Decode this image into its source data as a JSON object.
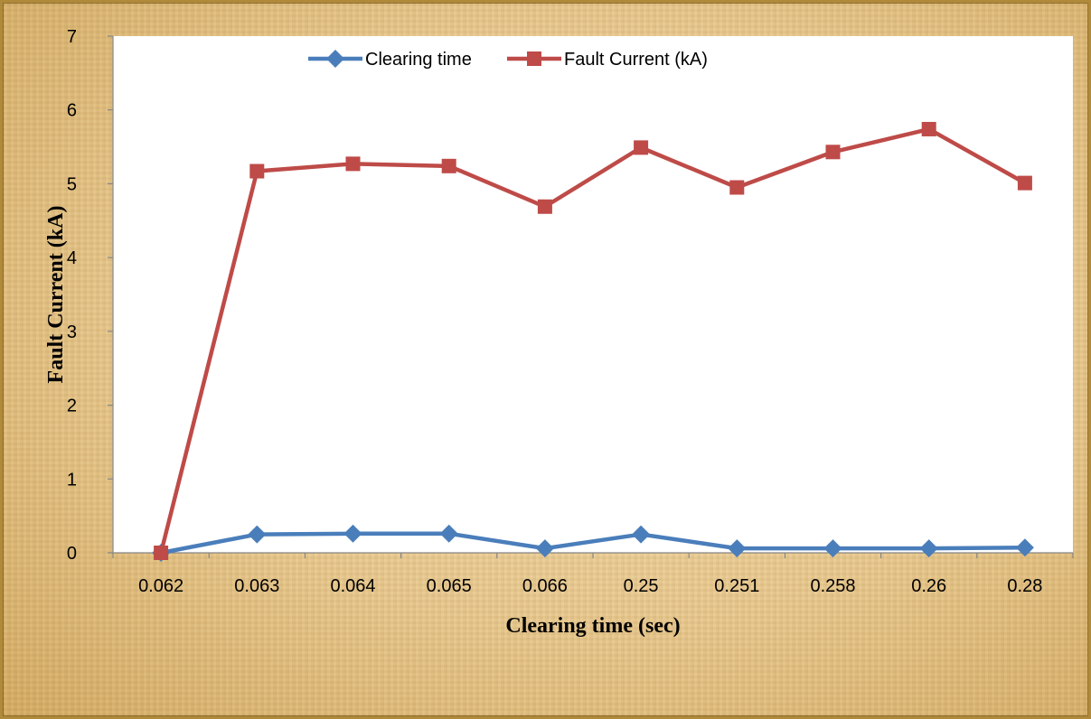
{
  "chart_data": {
    "type": "line",
    "categories": [
      "0.062",
      "0.063",
      "0.064",
      "0.065",
      "0.066",
      "0.25",
      "0.251",
      "0.258",
      "0.26",
      "0.28"
    ],
    "series": [
      {
        "name": "Clearing time",
        "values": [
          0.0,
          0.25,
          0.26,
          0.26,
          0.06,
          0.25,
          0.06,
          0.06,
          0.06,
          0.07
        ],
        "color": "#4a7ebb",
        "marker": "diamond"
      },
      {
        "name": "Fault Current (kA)",
        "values": [
          0.0,
          5.17,
          5.27,
          5.24,
          4.69,
          5.49,
          4.95,
          5.43,
          5.74,
          5.01
        ],
        "color": "#be4b48",
        "marker": "square"
      }
    ],
    "xlabel": "Clearing time (sec)",
    "ylabel": "Fault Current (kA)",
    "ylim": [
      0,
      7
    ],
    "yticks": [
      "0",
      "1",
      "2",
      "3",
      "4",
      "5",
      "6",
      "7"
    ],
    "grid": false,
    "legend_position": "top"
  }
}
